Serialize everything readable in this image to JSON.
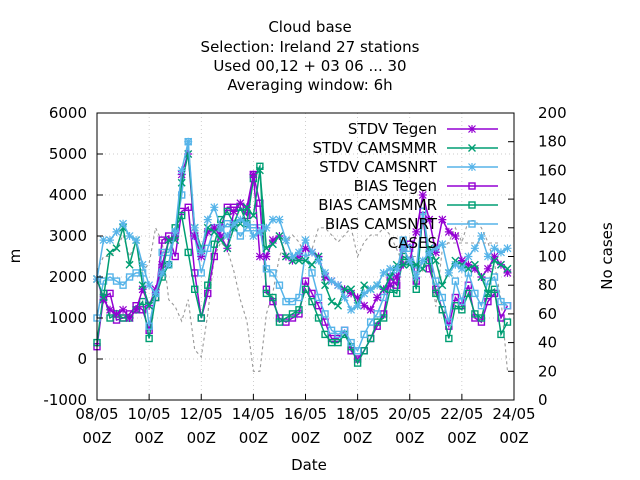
{
  "chart_data": {
    "type": "line",
    "title_lines": [
      "Cloud base",
      "Selection: Ireland      27 stations",
      "Used  00,12 + 03 06 ... 30",
      "Averaging window:  6h"
    ],
    "xlabel": "Date",
    "ylabel": "m",
    "y2label": "No cases",
    "x_ticks": [
      {
        "d": 0,
        "top": "08/05",
        "bottom": "00Z"
      },
      {
        "d": 2,
        "top": "10/05",
        "bottom": "00Z"
      },
      {
        "d": 4,
        "top": "12/05",
        "bottom": "00Z"
      },
      {
        "d": 6,
        "top": "14/05",
        "bottom": "00Z"
      },
      {
        "d": 8,
        "top": "16/05",
        "bottom": "00Z"
      },
      {
        "d": 10,
        "top": "18/05",
        "bottom": "00Z"
      },
      {
        "d": 12,
        "top": "20/05",
        "bottom": "00Z"
      },
      {
        "d": 14,
        "top": "22/05",
        "bottom": "00Z"
      },
      {
        "d": 16,
        "top": "24/05",
        "bottom": "00Z"
      }
    ],
    "xlim": [
      0,
      16
    ],
    "ylim": [
      -1000,
      6000
    ],
    "yticks": [
      "-1000",
      "0",
      "1000",
      "2000",
      "3000",
      "4000",
      "5000",
      "6000"
    ],
    "y2lim": [
      0,
      200
    ],
    "y2ticks": [
      "0",
      "20",
      "40",
      "60",
      "80",
      "100",
      "120",
      "140",
      "160",
      "180",
      "200"
    ],
    "grid": true,
    "legend_position": "top-right",
    "x_values_days": [
      0,
      0.25,
      0.5,
      0.75,
      1,
      1.25,
      1.5,
      1.75,
      2,
      2.25,
      2.5,
      2.75,
      3,
      3.25,
      3.5,
      3.75,
      4,
      4.25,
      4.5,
      4.75,
      5,
      5.25,
      5.5,
      5.75,
      6,
      6.25,
      6.5,
      6.75,
      7,
      7.25,
      7.5,
      7.75,
      8,
      8.25,
      8.5,
      8.75,
      9,
      9.25,
      9.5,
      9.75,
      10,
      10.25,
      10.5,
      10.75,
      11,
      11.25,
      11.5,
      11.75,
      12,
      12.25,
      12.5,
      12.75,
      13,
      13.25,
      13.5,
      13.75,
      14,
      14.25,
      14.5,
      14.75,
      15,
      15.25,
      15.5,
      15.75
    ],
    "series": [
      {
        "name": "STDV Tegen",
        "color": "#9400d3",
        "axis": "y1",
        "marker": "star",
        "values": [
          1950,
          1450,
          1200,
          1100,
          1200,
          1000,
          1200,
          1700,
          1300,
          1700,
          2300,
          2900,
          3000,
          4500,
          5000,
          3000,
          2500,
          3100,
          3200,
          3000,
          2700,
          3600,
          3800,
          3700,
          4500,
          2500,
          2500,
          2900,
          3000,
          2500,
          2400,
          2500,
          2700,
          2600,
          2500,
          2000,
          1900,
          1800,
          1700,
          1600,
          1500,
          1300,
          1200,
          1500,
          1700,
          1800,
          2000,
          2300,
          2400,
          3100,
          4000,
          3400,
          2600,
          3400,
          3100,
          3000,
          2400,
          2300,
          2200,
          2000,
          2200,
          2500,
          2300,
          2100
        ]
      },
      {
        "name": "STDV CAMSMMR",
        "color": "#009e73",
        "axis": "y1",
        "marker": "x",
        "values": [
          1950,
          1500,
          2600,
          2700,
          3200,
          2300,
          2900,
          1800,
          1300,
          1600,
          2100,
          2900,
          2900,
          4300,
          5000,
          3200,
          2700,
          3200,
          3100,
          2900,
          2700,
          3200,
          3300,
          3700,
          3500,
          4600,
          2700,
          2800,
          3000,
          2500,
          2400,
          2400,
          2400,
          2300,
          2500,
          1800,
          1400,
          1300,
          1700,
          1700,
          1300,
          1800,
          1700,
          1800,
          1700,
          2000,
          2300,
          2300,
          2300,
          2300,
          2200,
          2700,
          2400,
          1800,
          2100,
          2400,
          2300,
          2200,
          2300,
          2000,
          1600,
          2400,
          2300,
          2200
        ]
      },
      {
        "name": "STDV CAMSNRT",
        "color": "#56b4e9",
        "axis": "y1",
        "marker": "star",
        "values": [
          1950,
          2900,
          2900,
          3100,
          3300,
          3000,
          2900,
          2300,
          1800,
          1600,
          2100,
          2300,
          3100,
          4600,
          5300,
          3200,
          2600,
          3400,
          3700,
          3200,
          3000,
          3300,
          3400,
          3300,
          3000,
          3100,
          3200,
          3400,
          3400,
          2900,
          2500,
          2600,
          2900,
          2600,
          2400,
          2100,
          1900,
          1800,
          1500,
          1200,
          1300,
          1600,
          1700,
          1800,
          2100,
          2200,
          2200,
          2700,
          2400,
          2000,
          2400,
          2600,
          2700,
          2800,
          2100,
          2300,
          2200,
          2500,
          2700,
          3000,
          2500,
          2700,
          2600,
          2700
        ]
      },
      {
        "name": "BIAS Tegen",
        "color": "#9400d3",
        "axis": "y1",
        "marker": "square",
        "values": [
          300,
          1500,
          1600,
          950,
          1000,
          1100,
          1300,
          1200,
          700,
          1500,
          2900,
          3000,
          2500,
          3600,
          3700,
          2100,
          1000,
          1600,
          2500,
          3200,
          3700,
          3700,
          3700,
          3500,
          4500,
          3800,
          1700,
          1400,
          1000,
          900,
          1000,
          1100,
          1900,
          1600,
          1300,
          900,
          500,
          500,
          700,
          200,
          0,
          200,
          500,
          800,
          1100,
          2000,
          1800,
          2700,
          2800,
          1900,
          3500,
          2200,
          1700,
          1200,
          800,
          1500,
          1300,
          1800,
          1000,
          900,
          1400,
          1600,
          1000,
          1300
        ]
      },
      {
        "name": "BIAS CAMSMMR",
        "color": "#009e73",
        "axis": "y1",
        "marker": "square",
        "values": [
          400,
          1600,
          1000,
          1100,
          1000,
          1000,
          1200,
          1400,
          500,
          1500,
          2000,
          2300,
          3200,
          3500,
          2600,
          1700,
          1000,
          1800,
          2800,
          3400,
          3600,
          3300,
          3700,
          3300,
          4400,
          4700,
          1600,
          1500,
          900,
          1000,
          1100,
          1200,
          1700,
          1400,
          1000,
          600,
          400,
          400,
          600,
          300,
          -100,
          200,
          500,
          900,
          1000,
          1700,
          1600,
          2500,
          2400,
          1700,
          3600,
          2400,
          1600,
          1200,
          500,
          1300,
          1200,
          1600,
          1100,
          1000,
          1600,
          1700,
          600,
          900
        ]
      },
      {
        "name": "BIAS CAMSNRT",
        "color": "#56b4e9",
        "axis": "y1",
        "marker": "square",
        "values": [
          1000,
          1900,
          2000,
          1900,
          1800,
          2000,
          2100,
          2100,
          800,
          1600,
          2600,
          2600,
          3100,
          4000,
          5300,
          3000,
          2100,
          2700,
          3200,
          3100,
          3300,
          3200,
          3000,
          3200,
          3200,
          3200,
          2200,
          2100,
          1800,
          1400,
          1400,
          1500,
          2600,
          2100,
          1500,
          1100,
          700,
          600,
          700,
          400,
          200,
          600,
          900,
          1100,
          1500,
          2100,
          2100,
          2900,
          2700,
          2200,
          3600,
          2600,
          1900,
          1500,
          900,
          1900,
          1400,
          2100,
          1600,
          1300,
          1900,
          2000,
          1400,
          1300
        ]
      },
      {
        "name": "CASES",
        "color": "#999999",
        "axis": "y2",
        "marker": "none",
        "dashed": true,
        "values": [
          90,
          100,
          100,
          105,
          115,
          100,
          110,
          90,
          95,
          120,
          110,
          70,
          65,
          55,
          70,
          35,
          30,
          60,
          100,
          110,
          105,
          90,
          70,
          55,
          20,
          20,
          60,
          75,
          100,
          110,
          115,
          110,
          100,
          105,
          120,
          120,
          115,
          110,
          115,
          120,
          100,
          110,
          115,
          115,
          120,
          115,
          105,
          95,
          100,
          100,
          90,
          100,
          65,
          105,
          110,
          120,
          110,
          125,
          125,
          120,
          110,
          95,
          70,
          20
        ]
      }
    ]
  }
}
